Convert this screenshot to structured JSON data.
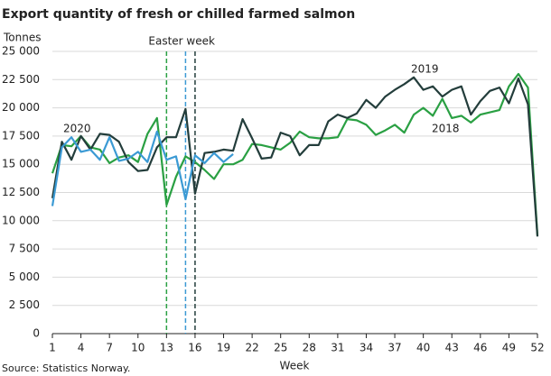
{
  "chart_data": {
    "type": "line",
    "title": "Export quantity of fresh or chilled farmed salmon",
    "y_label": "Tonnes",
    "x_label": "Week",
    "source": "Source: Statistics Norway.",
    "annotation": "Easter week",
    "x": [
      1,
      2,
      3,
      4,
      5,
      6,
      7,
      8,
      9,
      10,
      11,
      12,
      13,
      14,
      15,
      16,
      17,
      18,
      19,
      20,
      21,
      22,
      23,
      24,
      25,
      26,
      27,
      28,
      29,
      30,
      31,
      32,
      33,
      34,
      35,
      36,
      37,
      38,
      39,
      40,
      41,
      42,
      43,
      44,
      45,
      46,
      47,
      48,
      49,
      50,
      51,
      52
    ],
    "xlim": [
      1,
      52
    ],
    "xticks": [
      1,
      4,
      7,
      10,
      13,
      16,
      19,
      22,
      25,
      28,
      31,
      34,
      37,
      40,
      43,
      46,
      49,
      52
    ],
    "ylim": [
      0,
      25000
    ],
    "yticks": [
      0,
      {
        "value": 2500,
        "label": "2 500"
      },
      {
        "value": 5000,
        "label": "5 000"
      },
      {
        "value": 7500,
        "label": "7 500"
      },
      {
        "value": 10000,
        "label": "10 000"
      },
      {
        "value": 12500,
        "label": "12 500"
      },
      {
        "value": 15000,
        "label": "15 000"
      },
      {
        "value": 17500,
        "label": "17 500"
      },
      {
        "value": 20000,
        "label": "20 000"
      },
      {
        "value": 22500,
        "label": "22 500"
      },
      {
        "value": 25000,
        "label": "25 000"
      }
    ],
    "grid": true,
    "series": [
      {
        "name": "2018",
        "color": "#2aa043",
        "easter_week": 13,
        "values": [
          14200,
          16700,
          16600,
          17500,
          16500,
          16300,
          15100,
          15600,
          15800,
          15200,
          17700,
          19100,
          11400,
          13900,
          15700,
          15200,
          14500,
          13700,
          15000,
          15000,
          15400,
          16800,
          16700,
          16500,
          16300,
          16900,
          17900,
          17400,
          17300,
          17300,
          17400,
          19000,
          18900,
          18500,
          17600,
          18000,
          18500,
          17800,
          19400,
          20000,
          19300,
          20800,
          19100,
          19300,
          18700,
          19400,
          19600,
          19800,
          21900,
          23000,
          21800,
          8700
        ]
      },
      {
        "name": "2019",
        "color": "#233d3b",
        "easter_week": 16,
        "values": [
          12000,
          17000,
          15400,
          17500,
          16300,
          17700,
          17600,
          17000,
          15200,
          14400,
          14500,
          16500,
          17400,
          17400,
          19900,
          12400,
          16000,
          16100,
          16300,
          16200,
          19000,
          17300,
          15500,
          15600,
          17800,
          17500,
          15800,
          16700,
          16700,
          18800,
          19400,
          19100,
          19500,
          20700,
          20000,
          21000,
          21600,
          22100,
          22700,
          21600,
          21900,
          21000,
          21600,
          21900,
          19400,
          20600,
          21500,
          21800,
          20400,
          22600,
          20300,
          8600
        ]
      },
      {
        "name": "2020",
        "color": "#3b9ad4",
        "easter_week": 15,
        "values": [
          11300,
          16500,
          17400,
          16100,
          16300,
          15400,
          17400,
          15300,
          15500,
          16100,
          15200,
          17900,
          15400,
          15700,
          11900,
          15800,
          15100,
          16000,
          15200,
          15900,
          null,
          null,
          null,
          null,
          null,
          null,
          null,
          null,
          null,
          null,
          null,
          null,
          null,
          null,
          null,
          null,
          null,
          null,
          null,
          null,
          null,
          null,
          null,
          null,
          null,
          null,
          null,
          null,
          null,
          null,
          null,
          null
        ]
      }
    ]
  }
}
